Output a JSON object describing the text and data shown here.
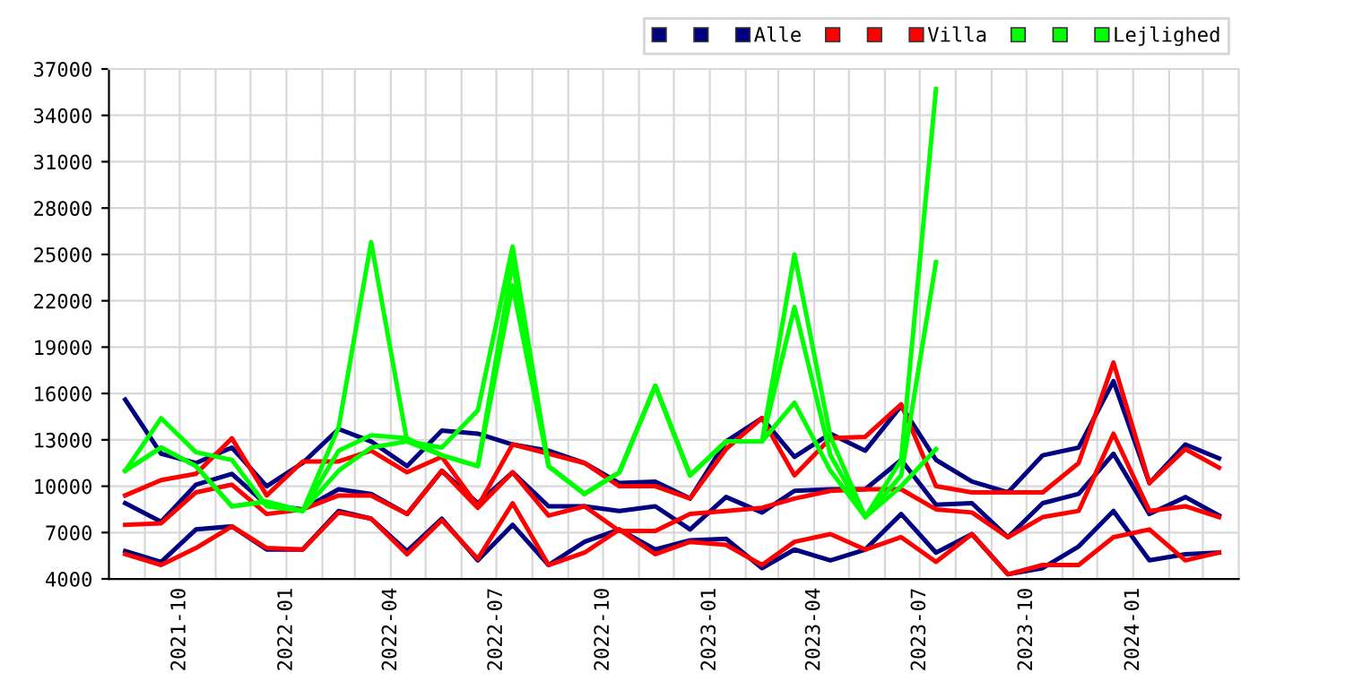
{
  "chart_data": {
    "type": "line",
    "x": [
      "2021-08-15",
      "2021-09-15",
      "2021-10-15",
      "2021-11-15",
      "2021-12-15",
      "2022-01-15",
      "2022-02-15",
      "2022-03-15",
      "2022-04-15",
      "2022-05-15",
      "2022-06-15",
      "2022-07-15",
      "2022-08-15",
      "2022-09-15",
      "2022-10-15",
      "2022-11-15",
      "2022-12-15",
      "2023-01-15",
      "2023-02-15",
      "2023-03-15",
      "2023-04-15",
      "2023-05-15",
      "2023-06-15",
      "2023-07-15",
      "2023-08-15",
      "2023-09-15",
      "2023-10-15",
      "2023-11-15",
      "2023-12-15",
      "2024-01-15",
      "2024-02-15",
      "2024-03-15"
    ],
    "series": [
      {
        "color": "#000080",
        "values": [
          5800,
          5100,
          7200,
          7400,
          5900,
          5900,
          8400,
          7900,
          5800,
          7900,
          5200,
          7500,
          4900,
          6400,
          7200,
          5900,
          6500,
          6600,
          4700,
          5900,
          5200,
          5900,
          8200,
          5700,
          6900,
          4300,
          4700,
          6100,
          8400,
          5200,
          5600,
          5700
        ]
      },
      {
        "color": "#000080",
        "values": [
          8900,
          7700,
          10100,
          10800,
          8800,
          8500,
          9800,
          9500,
          8200,
          11000,
          8900,
          10900,
          8700,
          8700,
          8400,
          8700,
          7200,
          9300,
          8300,
          9700,
          9800,
          9800,
          11700,
          8800,
          8900,
          6700,
          8900,
          9500,
          12100,
          8200,
          9300,
          8100
        ]
      },
      {
        "name": "Alle",
        "color": "#000080",
        "values": [
          15600,
          12100,
          11500,
          12500,
          10000,
          11500,
          13700,
          12900,
          11300,
          13600,
          13400,
          12700,
          12300,
          11500,
          10200,
          10300,
          9200,
          12900,
          14400,
          11900,
          13400,
          12300,
          15200,
          11700,
          10300,
          9600,
          12000,
          12500,
          16800,
          10200,
          12700,
          11800
        ]
      },
      {
        "color": "#ff0000",
        "values": [
          5600,
          4900,
          6000,
          7400,
          6000,
          5900,
          8300,
          7900,
          5600,
          7800,
          5300,
          8900,
          4900,
          5700,
          7200,
          5600,
          6400,
          6200,
          4900,
          6400,
          6900,
          5900,
          6700,
          5100,
          6900,
          4300,
          4900,
          4900,
          6700,
          7200,
          5200,
          5700
        ]
      },
      {
        "color": "#ff0000",
        "values": [
          7500,
          7600,
          9600,
          10100,
          8200,
          8500,
          9400,
          9400,
          8200,
          11000,
          8600,
          10900,
          8100,
          8700,
          7100,
          7100,
          8200,
          8400,
          8600,
          9200,
          9700,
          9800,
          9800,
          8500,
          8300,
          6700,
          8000,
          8400,
          13400,
          8400,
          8700,
          8000
        ]
      },
      {
        "name": "Villa",
        "color": "#ff0000",
        "values": [
          9400,
          10400,
          10800,
          13100,
          9400,
          11600,
          11600,
          12300,
          10900,
          11900,
          8700,
          12700,
          12100,
          11500,
          10000,
          10000,
          9200,
          12400,
          14400,
          10700,
          13100,
          13200,
          15300,
          10000,
          9600,
          9600,
          9600,
          11500,
          18000,
          10200,
          12400,
          11200
        ]
      },
      {
        "color": "#00ff00",
        "values": [
          11000,
          12500,
          11300,
          8700,
          9000,
          8400,
          11000,
          12500,
          12900,
          12000,
          11300,
          23000,
          11300,
          9500,
          10900,
          16500,
          10700,
          12900,
          12900,
          15400,
          11000,
          8000,
          10000,
          12400,
          null,
          null,
          null,
          null,
          null,
          null,
          null,
          null
        ]
      },
      {
        "color": "#00ff00",
        "values": [
          11000,
          12500,
          11300,
          8700,
          9000,
          8400,
          12300,
          13300,
          13100,
          12000,
          11300,
          24500,
          11300,
          9500,
          10900,
          16500,
          10700,
          12900,
          12900,
          21600,
          12000,
          8000,
          10700,
          24500,
          null,
          null,
          null,
          null,
          null,
          null,
          null,
          null
        ]
      },
      {
        "name": "Lejlighed",
        "color": "#00ff00",
        "values": [
          11000,
          14400,
          12200,
          11700,
          8700,
          8400,
          13800,
          25800,
          12900,
          12500,
          14900,
          25500,
          11300,
          9500,
          10900,
          16500,
          10700,
          12900,
          12900,
          25000,
          13200,
          8000,
          11700,
          35700,
          null,
          null,
          null,
          null,
          null,
          null,
          null,
          null
        ]
      }
    ],
    "xlim": [
      "2021-08-01",
      "2024-04-01"
    ],
    "xticks": [
      {
        "value": "2021-09-01",
        "label": null
      },
      {
        "value": "2021-10-01",
        "label": "2021-10"
      },
      {
        "value": "2021-11-01",
        "label": null
      },
      {
        "value": "2021-12-01",
        "label": null
      },
      {
        "value": "2022-01-01",
        "label": "2022-01"
      },
      {
        "value": "2022-02-01",
        "label": null
      },
      {
        "value": "2022-03-01",
        "label": null
      },
      {
        "value": "2022-04-01",
        "label": "2022-04"
      },
      {
        "value": "2022-05-01",
        "label": null
      },
      {
        "value": "2022-06-01",
        "label": null
      },
      {
        "value": "2022-07-01",
        "label": "2022-07"
      },
      {
        "value": "2022-08-01",
        "label": null
      },
      {
        "value": "2022-09-01",
        "label": null
      },
      {
        "value": "2022-10-01",
        "label": "2022-10"
      },
      {
        "value": "2022-11-01",
        "label": null
      },
      {
        "value": "2022-12-01",
        "label": null
      },
      {
        "value": "2023-01-01",
        "label": "2023-01"
      },
      {
        "value": "2023-02-01",
        "label": null
      },
      {
        "value": "2023-03-01",
        "label": null
      },
      {
        "value": "2023-04-01",
        "label": "2023-04"
      },
      {
        "value": "2023-05-01",
        "label": null
      },
      {
        "value": "2023-06-01",
        "label": null
      },
      {
        "value": "2023-07-01",
        "label": "2023-07"
      },
      {
        "value": "2023-08-01",
        "label": null
      },
      {
        "value": "2023-09-01",
        "label": null
      },
      {
        "value": "2023-10-01",
        "label": "2023-10"
      },
      {
        "value": "2023-11-01",
        "label": null
      },
      {
        "value": "2023-12-01",
        "label": null
      },
      {
        "value": "2024-01-01",
        "label": "2024-01"
      },
      {
        "value": "2024-02-01",
        "label": null
      },
      {
        "value": "2024-03-01",
        "label": null
      }
    ],
    "ylim": [
      4000,
      37000
    ],
    "yticks": [
      4000,
      7000,
      10000,
      13000,
      16000,
      19000,
      22000,
      25000,
      28000,
      31000,
      34000,
      37000
    ],
    "grid": true,
    "legend": "top right",
    "marker": "none",
    "line_style": "solid"
  }
}
